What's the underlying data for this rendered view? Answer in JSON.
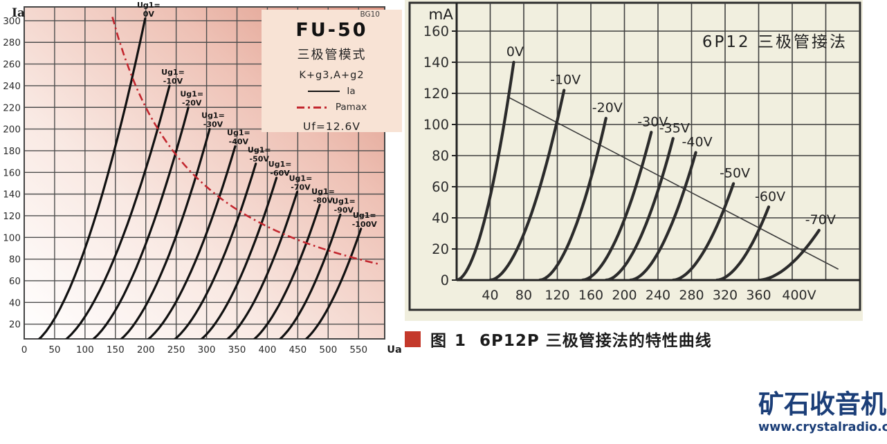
{
  "caption": {
    "figure_label": "图 1",
    "text": "6P12P 三极管接法的特性曲线",
    "bullet_color": "#c4392b"
  },
  "logo": {
    "name": "矿石收音机",
    "url": "www.crystalradio.cn",
    "color": "#1b3e78"
  },
  "chart_data": [
    {
      "id": "fu50",
      "type": "line",
      "title": "FU-50",
      "mode": "三极管模式",
      "connection": "K+g3,A+g2",
      "heater": "Uf=12.6V",
      "watermark": "BG10",
      "xlabel": "Ua",
      "ylabel": "Ia",
      "x_tick_values": [
        0,
        50,
        100,
        150,
        200,
        250,
        300,
        350,
        400,
        450,
        500,
        550
      ],
      "x_tick_labels": [
        "0",
        "50",
        "100",
        "150",
        "200",
        "250",
        "300",
        "350",
        "400",
        "450",
        "500",
        "550"
      ],
      "y_tick_values": [
        20,
        40,
        60,
        80,
        100,
        120,
        140,
        160,
        180,
        200,
        220,
        240,
        260,
        280,
        300
      ],
      "xlim": [
        0,
        593
      ],
      "ylim": [
        0,
        313
      ],
      "grid": true,
      "curve_exponent": 1.7,
      "curve_color": "#111111",
      "legend_entries": [
        {
          "label": "Ia",
          "style": "solid",
          "color": "#111111"
        },
        {
          "label": "Pamax",
          "style": "dash-dot",
          "color": "#c2262e"
        }
      ],
      "series": [
        {
          "name": "Ug1= 0V",
          "label_lines": [
            "Ug1=",
            "0V"
          ],
          "x0": 5,
          "tip": [
            199,
            302
          ]
        },
        {
          "name": "Ug1= -10V",
          "label_lines": [
            "Ug1=",
            "-10V"
          ],
          "x0": 47,
          "tip": [
            239,
            240
          ]
        },
        {
          "name": "Ug1= -20V",
          "label_lines": [
            "Ug1=",
            "-20V"
          ],
          "x0": 92,
          "tip": [
            270,
            220
          ]
        },
        {
          "name": "Ug1= -30V",
          "label_lines": [
            "Ug1=",
            "-30V"
          ],
          "x0": 138,
          "tip": [
            305,
            200
          ]
        },
        {
          "name": "Ug1= -40V",
          "label_lines": [
            "Ug1=",
            "-40V"
          ],
          "x0": 182,
          "tip": [
            347,
            184
          ]
        },
        {
          "name": "Ug1= -50V",
          "label_lines": [
            "Ug1=",
            "-50V"
          ],
          "x0": 226,
          "tip": [
            381,
            168
          ]
        },
        {
          "name": "Ug1= -60V",
          "label_lines": [
            "Ug1=",
            "-60V"
          ],
          "x0": 270,
          "tip": [
            415,
            155
          ]
        },
        {
          "name": "Ug1= -70V",
          "label_lines": [
            "Ug1=",
            "-70V"
          ],
          "x0": 313,
          "tip": [
            449,
            142
          ]
        },
        {
          "name": "Ug1= -80V",
          "label_lines": [
            "Ug1=",
            "-80V"
          ],
          "x0": 357,
          "tip": [
            486,
            130
          ]
        },
        {
          "name": "Ug1= -90V",
          "label_lines": [
            "Ug1=",
            "-90V"
          ],
          "x0": 400,
          "tip": [
            520,
            121
          ]
        },
        {
          "name": "Ug1= -100V",
          "label_lines": [
            "Ug1=",
            "-100V"
          ],
          "x0": 443,
          "tip": [
            554,
            108
          ]
        }
      ],
      "pamax": {
        "power_mw": 44000,
        "ua_range": [
          145,
          590
        ],
        "color": "#c2262e"
      }
    },
    {
      "id": "6p12",
      "type": "line",
      "title": "6P12 三极管接法",
      "ylabel": "mA",
      "x_tick_values": [
        40,
        80,
        120,
        160,
        200,
        240,
        280,
        320,
        360,
        400
      ],
      "x_tick_labels": [
        "40",
        "80",
        "120",
        "160",
        "200",
        "240",
        "280",
        "320",
        "360",
        "400V"
      ],
      "y_tick_values": [
        0,
        20,
        40,
        60,
        80,
        100,
        120,
        140,
        160
      ],
      "xlim": [
        0,
        481
      ],
      "ylim": [
        0,
        178
      ],
      "grid": true,
      "curve_exponent": 1.8,
      "curve_color": "#2b2b2b",
      "series": [
        {
          "name": "0V",
          "label": "0V",
          "x0": 0,
          "tip": [
            68,
            140
          ]
        },
        {
          "name": "-10V",
          "label": "-10V",
          "x0": 40,
          "tip": [
            128,
            122
          ]
        },
        {
          "name": "-20V",
          "label": "-20V",
          "x0": 99,
          "tip": [
            178,
            104
          ]
        },
        {
          "name": "-30V",
          "label": "-30V",
          "x0": 150,
          "tip": [
            232,
            95
          ]
        },
        {
          "name": "-35V",
          "label": "-35V",
          "x0": 178,
          "tip": [
            258,
            91
          ]
        },
        {
          "name": "-40V",
          "label": "-40V",
          "x0": 207,
          "tip": [
            285,
            82
          ]
        },
        {
          "name": "-50V",
          "label": "-50V",
          "x0": 258,
          "tip": [
            330,
            62
          ]
        },
        {
          "name": "-60V",
          "label": "-60V",
          "x0": 310,
          "tip": [
            372,
            47
          ]
        },
        {
          "name": "-70V",
          "label": "-70V",
          "x0": 360,
          "tip": [
            432,
            32
          ]
        }
      ],
      "load_line": {
        "from": [
          60,
          118
        ],
        "to": [
          455,
          7
        ]
      }
    }
  ]
}
